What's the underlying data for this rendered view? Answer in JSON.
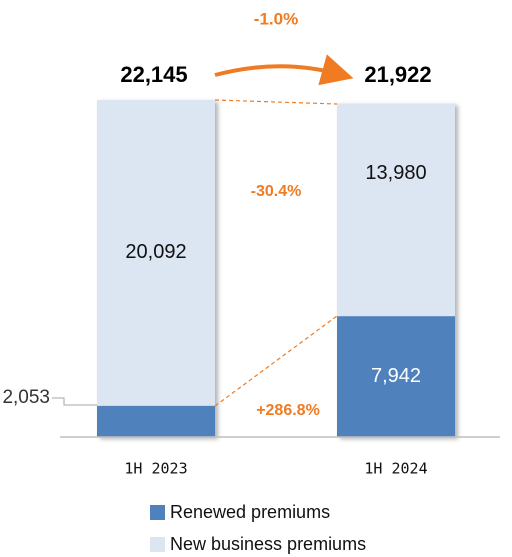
{
  "chart_data": {
    "type": "stacked_bar",
    "categories": [
      "1H 2023",
      "1H 2024"
    ],
    "series": [
      {
        "name": "Renewed premiums",
        "color": "#4f81bd",
        "values": [
          2053,
          7942
        ],
        "value_labels": [
          "2,053",
          "7,942"
        ]
      },
      {
        "name": "New business premiums",
        "color": "#dce6f2",
        "values": [
          20092,
          13980
        ],
        "value_labels": [
          "20,092",
          "13,980"
        ]
      }
    ],
    "totals": [
      22145,
      21922
    ],
    "total_labels": [
      "22,145",
      "21,922"
    ],
    "annotations": {
      "total_change": "-1.0%",
      "new_business_change": "-30.4%",
      "renewed_change": "+286.8%"
    },
    "legend": "bottom"
  }
}
